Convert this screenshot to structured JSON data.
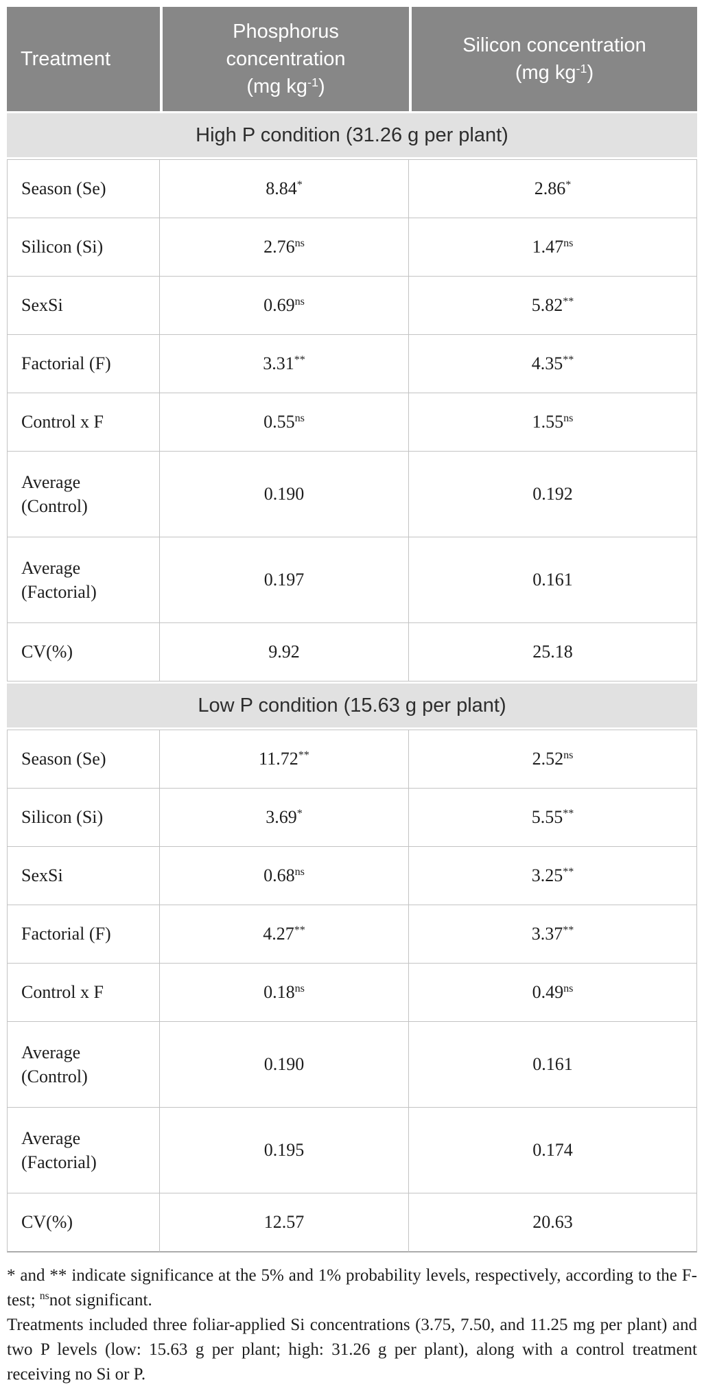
{
  "table": {
    "header": {
      "treatment": "Treatment",
      "phosphorus_line1": "Phosphorus",
      "phosphorus_line2": "concentration",
      "silicon_line1": "Silicon concentration",
      "unit_prefix": "(mg kg",
      "unit_sup": "-1",
      "unit_suffix": ")"
    },
    "sections": [
      {
        "title": "High P condition (31.26 g per plant)",
        "rows": [
          {
            "label": "Season (Se)",
            "p": {
              "v": "8.84",
              "sup": "*"
            },
            "si": {
              "v": "2.86",
              "sup": "*"
            }
          },
          {
            "label": "Silicon (Si)",
            "p": {
              "v": "2.76",
              "sup": "ns"
            },
            "si": {
              "v": "1.47",
              "sup": "ns"
            }
          },
          {
            "label": "SexSi",
            "p": {
              "v": "0.69",
              "sup": "ns"
            },
            "si": {
              "v": "5.82",
              "sup": "**"
            }
          },
          {
            "label": "Factorial (F)",
            "p": {
              "v": "3.31",
              "sup": "**"
            },
            "si": {
              "v": "4.35",
              "sup": "**"
            }
          },
          {
            "label": "Control x F",
            "p": {
              "v": "0.55",
              "sup": "ns"
            },
            "si": {
              "v": "1.55",
              "sup": "ns"
            }
          },
          {
            "label": "Average (Control)",
            "p": {
              "v": "0.190",
              "sup": ""
            },
            "si": {
              "v": "0.192",
              "sup": ""
            }
          },
          {
            "label": "Average (Factorial)",
            "p": {
              "v": "0.197",
              "sup": ""
            },
            "si": {
              "v": "0.161",
              "sup": ""
            }
          },
          {
            "label": "CV(%)",
            "p": {
              "v": "9.92",
              "sup": ""
            },
            "si": {
              "v": "25.18",
              "sup": ""
            }
          }
        ]
      },
      {
        "title": "Low P condition (15.63 g per plant)",
        "rows": [
          {
            "label": "Season (Se)",
            "p": {
              "v": "11.72",
              "sup": "**"
            },
            "si": {
              "v": "2.52",
              "sup": "ns"
            }
          },
          {
            "label": "Silicon (Si)",
            "p": {
              "v": "3.69",
              "sup": "*"
            },
            "si": {
              "v": "5.55",
              "sup": "**"
            }
          },
          {
            "label": "SexSi",
            "p": {
              "v": "0.68",
              "sup": "ns"
            },
            "si": {
              "v": "3.25",
              "sup": "**"
            }
          },
          {
            "label": "Factorial (F)",
            "p": {
              "v": "4.27",
              "sup": "**"
            },
            "si": {
              "v": "3.37",
              "sup": "**"
            }
          },
          {
            "label": "Control x F",
            "p": {
              "v": "0.18",
              "sup": "ns"
            },
            "si": {
              "v": "0.49",
              "sup": "ns"
            }
          },
          {
            "label": "Average (Control)",
            "p": {
              "v": "0.190",
              "sup": ""
            },
            "si": {
              "v": "0.161",
              "sup": ""
            }
          },
          {
            "label": "Average (Factorial)",
            "p": {
              "v": "0.195",
              "sup": ""
            },
            "si": {
              "v": "0.174",
              "sup": ""
            }
          },
          {
            "label": "CV(%)",
            "p": {
              "v": "12.57",
              "sup": ""
            },
            "si": {
              "v": "20.63",
              "sup": ""
            }
          }
        ]
      }
    ]
  },
  "footnotes": {
    "sig_prefix": "* and ** indicate significance at the 5% and 1% probability levels, respectively, according to the F-test; ",
    "sig_sup": "ns",
    "sig_suffix": "not significant.",
    "treatments": "Treatments included three foliar-applied Si concentrations (3.75, 7.50, and 11.25 mg per plant) and two P levels (low: 15.63 g per plant; high: 31.26 g per plant), along with a control treatment receiving no Si or P."
  },
  "colors": {
    "header_bg": "#878787",
    "header_text": "#ffffff",
    "section_band_bg": "#e1e1e1",
    "cell_border": "#c3c3c3",
    "body_text": "#1d1d1d"
  }
}
